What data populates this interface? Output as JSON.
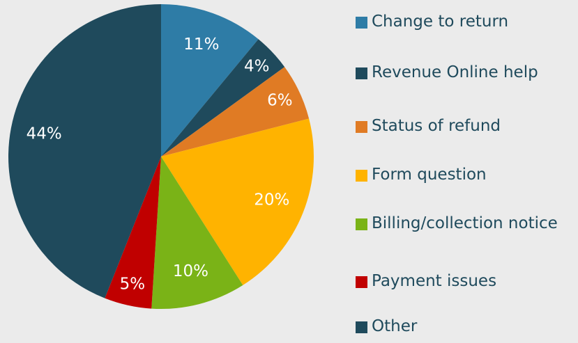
{
  "chart_data": {
    "type": "pie",
    "categories": [
      "Change to return",
      "Revenue Online help",
      "Status of refund",
      "Form question",
      "Billing/collection notice",
      "Payment issues",
      "Other"
    ],
    "values": [
      11,
      4,
      6,
      20,
      10,
      5,
      44
    ],
    "value_labels": [
      "11%",
      "4%",
      "6%",
      "20%",
      "10%",
      "5%",
      "44%"
    ],
    "colors": [
      "#2e7ca6",
      "#1f4a5c",
      "#e07b24",
      "#ffb300",
      "#7ab317",
      "#c00000",
      "#1f4a5c"
    ],
    "legend": "right"
  }
}
